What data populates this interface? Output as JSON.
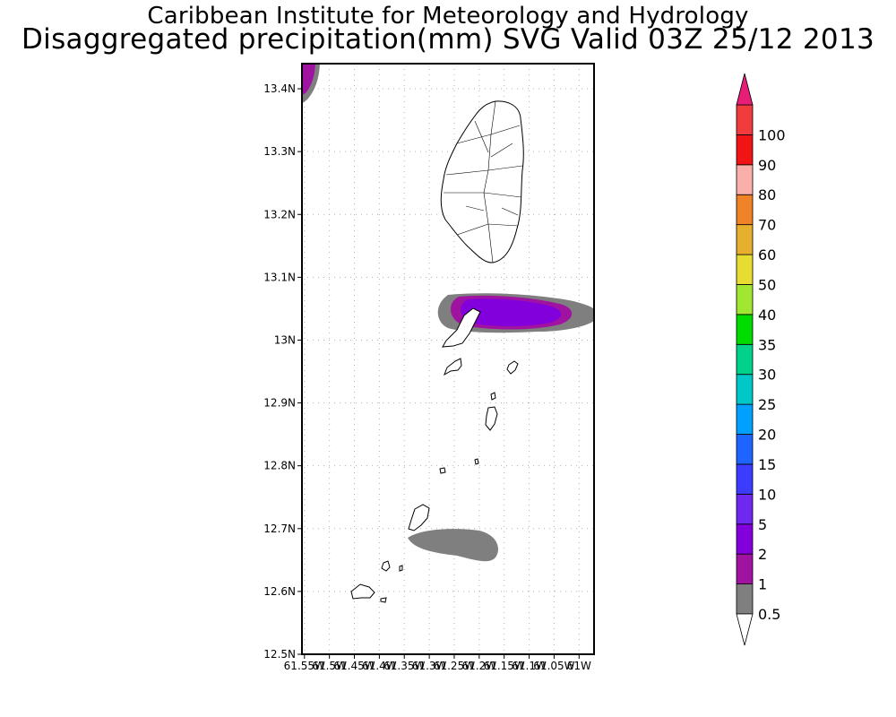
{
  "header": {
    "institute": "Caribbean Institute for Meteorology and Hydrology",
    "product": "Disaggregated precipitation(mm) SVG Valid 03Z 25/12 2013"
  },
  "map": {
    "lat_min": 12.5,
    "lat_max": 13.44,
    "lon_min": -61.555,
    "lon_max": -60.97,
    "lat_ticks": [
      {
        "value": 13.4,
        "label": "13.4N"
      },
      {
        "value": 13.3,
        "label": "13.3N"
      },
      {
        "value": 13.2,
        "label": "13.2N"
      },
      {
        "value": 13.1,
        "label": "13.1N"
      },
      {
        "value": 13.0,
        "label": "13N"
      },
      {
        "value": 12.9,
        "label": "12.9N"
      },
      {
        "value": 12.8,
        "label": "12.8N"
      },
      {
        "value": 12.7,
        "label": "12.7N"
      },
      {
        "value": 12.6,
        "label": "12.6N"
      },
      {
        "value": 12.5,
        "label": "12.5N"
      }
    ],
    "lon_ticks": [
      {
        "value": -61.55,
        "label": "61.55W"
      },
      {
        "value": -61.5,
        "label": "61.5W"
      },
      {
        "value": -61.45,
        "label": "61.45W"
      },
      {
        "value": -61.4,
        "label": "61.4W"
      },
      {
        "value": -61.35,
        "label": "61.35W"
      },
      {
        "value": -61.3,
        "label": "61.3W"
      },
      {
        "value": -61.25,
        "label": "61.25W"
      },
      {
        "value": -61.2,
        "label": "61.2W"
      },
      {
        "value": -61.15,
        "label": "61.15W"
      },
      {
        "value": -61.1,
        "label": "61.1W"
      },
      {
        "value": -61.05,
        "label": "61.05W"
      },
      {
        "value": -61.0,
        "label": "61W"
      }
    ]
  },
  "legend": {
    "bins": [
      {
        "label": "0.5",
        "color": "#7f7f7f"
      },
      {
        "label": "1",
        "color": "#a013a0"
      },
      {
        "label": "2",
        "color": "#8200dc"
      },
      {
        "label": "5",
        "color": "#6e28f0"
      },
      {
        "label": "10",
        "color": "#3c3cff"
      },
      {
        "label": "15",
        "color": "#1e64ff"
      },
      {
        "label": "20",
        "color": "#00a0ff"
      },
      {
        "label": "25",
        "color": "#00c8c8"
      },
      {
        "label": "30",
        "color": "#00d28c"
      },
      {
        "label": "35",
        "color": "#00dc00"
      },
      {
        "label": "40",
        "color": "#a0e632"
      },
      {
        "label": "50",
        "color": "#e6dc32"
      },
      {
        "label": "60",
        "color": "#e6af2d"
      },
      {
        "label": "70",
        "color": "#f08228"
      },
      {
        "label": "80",
        "color": "#faafaa"
      },
      {
        "label": "90",
        "color": "#f01414"
      },
      {
        "label": "100",
        "color": "#f03c3c"
      }
    ],
    "below_color": "#ffffff",
    "above_color": "#e61e78"
  }
}
